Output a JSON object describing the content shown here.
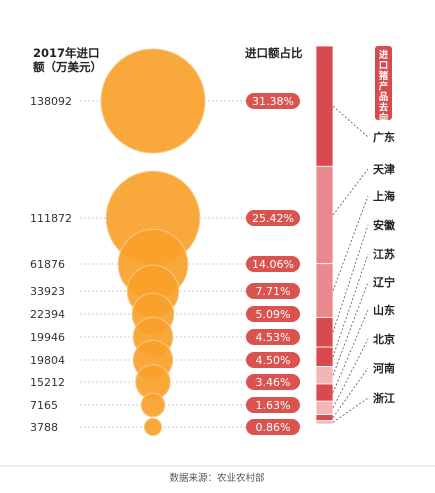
{
  "header": {
    "amount_title_line1": "2017年进口",
    "amount_title_line2": "额（万美元）",
    "share_title": "进口额占比",
    "legend_vertical": "进口猪产品去向"
  },
  "source": "数据来源：农业农村部",
  "colors": {
    "bubble": "#f9a12a",
    "bubble_overlap": "#f7c98a",
    "pct_badge": "#d9534f",
    "bar_dark": "#d94a4f",
    "bar_light": "#e88a8d",
    "bar_pale": "#f3b6b8",
    "legend_bg": "#d94a4f"
  },
  "chart_data": {
    "type": "bubble",
    "title": "",
    "categories": [
      "广东",
      "天津",
      "上海",
      "安徽",
      "江苏",
      "辽宁",
      "山东",
      "北京",
      "河南",
      "浙江"
    ],
    "series": [
      {
        "name": "2017年进口额（万美元）",
        "values": [
          138092,
          111872,
          61876,
          33923,
          22394,
          19946,
          19804,
          15212,
          7165,
          3788
        ]
      },
      {
        "name": "进口额占比",
        "values": [
          31.38,
          25.42,
          14.06,
          7.71,
          5.09,
          4.53,
          4.5,
          3.46,
          1.63,
          0.86
        ],
        "labels": [
          "31.38%",
          "25.42%",
          "14.06%",
          "7.71%",
          "5.09%",
          "4.53%",
          "4.50%",
          "3.46%",
          "1.63%",
          "0.86%"
        ]
      }
    ],
    "amount_labels": [
      "138092",
      "111872",
      "61876",
      "33923",
      "22394",
      "19946",
      "19804",
      "15212",
      "7165",
      "3788"
    ],
    "legend": "none"
  }
}
